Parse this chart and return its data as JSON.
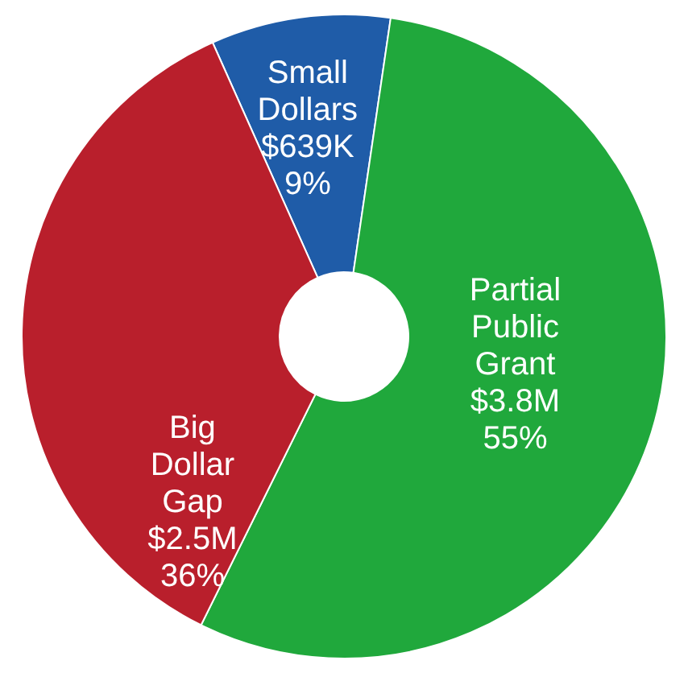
{
  "chart_data": {
    "type": "donut",
    "categories": [
      "Small Dollars",
      "Partial Public Grant",
      "Big Dollar Gap"
    ],
    "values": [
      9,
      55,
      36
    ],
    "value_labels": [
      "$639K\n9%",
      "$3.8M\n55%",
      "$2.5M\n36%"
    ],
    "colors": [
      "#1f5ca8",
      "#20a83c",
      "#b91f2c"
    ],
    "legend": false
  }
}
